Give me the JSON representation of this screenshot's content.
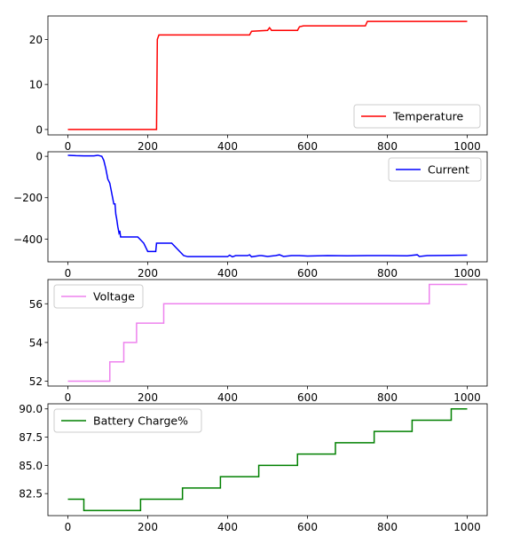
{
  "chart_data": [
    {
      "type": "line",
      "series": [
        {
          "name": "Temperature",
          "color": "#ff0000"
        }
      ],
      "x": [
        0,
        222,
        224,
        228,
        455,
        460,
        500,
        505,
        510,
        575,
        580,
        590,
        745,
        750,
        1000
      ],
      "y": [
        0,
        0,
        20,
        21,
        21,
        21.8,
        22,
        22.6,
        22,
        22,
        22.8,
        23,
        23,
        24,
        24
      ],
      "xlim": [
        -50,
        1050
      ],
      "ylim": [
        -1.2,
        25.2
      ],
      "xticks": [
        0,
        200,
        400,
        600,
        800,
        1000
      ],
      "yticks": [
        0,
        10,
        20
      ],
      "legend": "lower right",
      "title": "",
      "xlabel": "",
      "ylabel": ""
    },
    {
      "type": "line",
      "series": [
        {
          "name": "Current",
          "color": "#0000ff"
        }
      ],
      "x": [
        0,
        20,
        40,
        65,
        75,
        85,
        90,
        95,
        100,
        105,
        110,
        115,
        118,
        120,
        122,
        125,
        128,
        130,
        132,
        135,
        140,
        175,
        190,
        200,
        220,
        222,
        225,
        260,
        275,
        290,
        300,
        400,
        405,
        412,
        420,
        450,
        455,
        460,
        480,
        485,
        500,
        520,
        530,
        540,
        560,
        580,
        600,
        650,
        700,
        750,
        800,
        850,
        875,
        880,
        900,
        1000
      ],
      "y": [
        5,
        3,
        2,
        2,
        5,
        0,
        -20,
        -60,
        -110,
        -130,
        -180,
        -230,
        -230,
        -280,
        -300,
        -340,
        -370,
        -360,
        -390,
        -390,
        -390,
        -390,
        -420,
        -460,
        -460,
        -420,
        -420,
        -420,
        -450,
        -480,
        -485,
        -485,
        -478,
        -486,
        -480,
        -480,
        -476,
        -486,
        -480,
        -480,
        -484,
        -480,
        -476,
        -484,
        -480,
        -480,
        -482,
        -480,
        -481,
        -480,
        -480,
        -481,
        -476,
        -484,
        -480,
        -478
      ],
      "xlim": [
        -50,
        1050
      ],
      "ylim": [
        -510,
        22
      ],
      "xticks": [
        0,
        200,
        400,
        600,
        800,
        1000
      ],
      "yticks": [
        0,
        -200,
        -400
      ],
      "ytick_labels": [
        "0",
        "−200",
        "−400"
      ],
      "legend": "upper right",
      "title": "",
      "xlabel": "",
      "ylabel": ""
    },
    {
      "type": "line",
      "step": true,
      "series": [
        {
          "name": "Voltage",
          "color": "#ee82ee"
        }
      ],
      "x": [
        0,
        105,
        140,
        172,
        240,
        905,
        1000
      ],
      "y": [
        52,
        53,
        54,
        55,
        56,
        57,
        57
      ],
      "xlim": [
        -50,
        1050
      ],
      "ylim": [
        51.75,
        57.25
      ],
      "xticks": [
        0,
        200,
        400,
        600,
        800,
        1000
      ],
      "yticks": [
        52,
        54,
        56
      ],
      "legend": "upper left",
      "title": "",
      "xlabel": "",
      "ylabel": ""
    },
    {
      "type": "line",
      "step": true,
      "series": [
        {
          "name": "Battery Charge%",
          "color": "#008000"
        }
      ],
      "x": [
        0,
        40,
        182,
        287,
        382,
        478,
        575,
        670,
        767,
        862,
        960,
        1000
      ],
      "y": [
        82,
        81,
        82,
        83,
        84,
        85,
        86,
        87,
        88,
        89,
        90,
        90
      ],
      "xlim": [
        -50,
        1050
      ],
      "ylim": [
        80.55,
        90.45
      ],
      "xticks": [
        0,
        200,
        400,
        600,
        800,
        1000
      ],
      "yticks": [
        82.5,
        85.0,
        87.5,
        90.0
      ],
      "ytick_labels": [
        "82.5",
        "85.0",
        "87.5",
        "90.0"
      ],
      "legend": "upper left",
      "title": "",
      "xlabel": "",
      "ylabel": ""
    }
  ]
}
